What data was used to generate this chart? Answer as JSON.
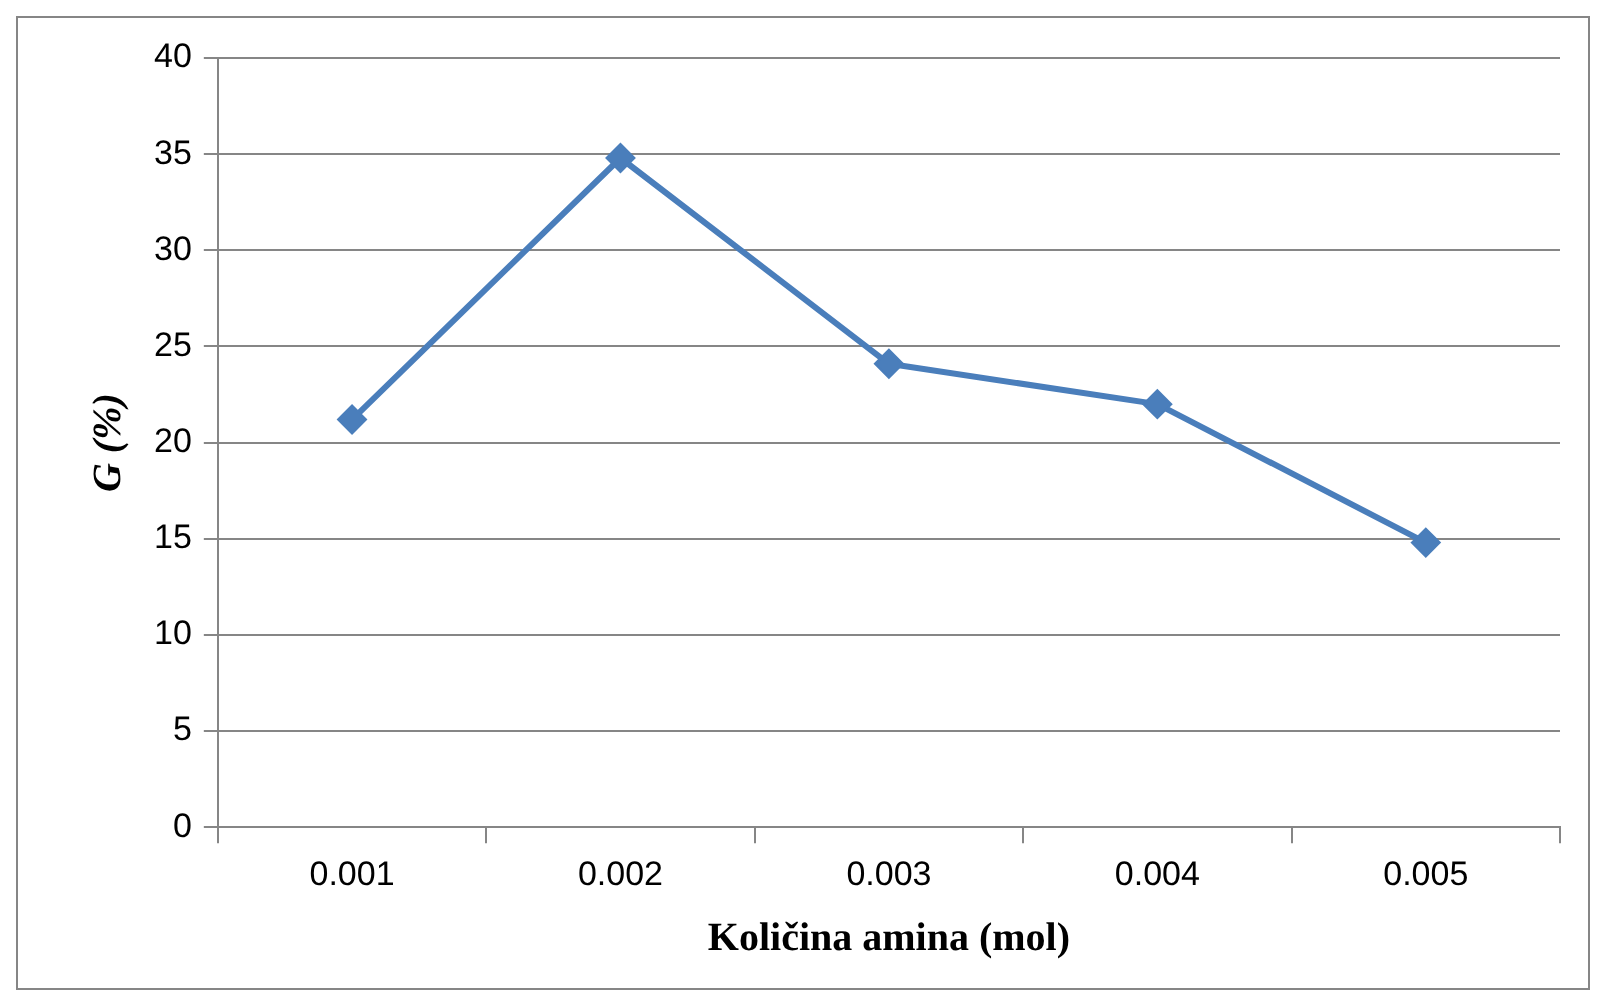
{
  "chart_data": {
    "type": "line",
    "xlabel": "Količina amina (mol)",
    "ylabel": "G (%)",
    "categories": [
      "0.001",
      "0.002",
      "0.003",
      "0.004",
      "0.005"
    ],
    "series": [
      {
        "color": "#4a7ebb",
        "values": [
          21.2,
          34.8,
          24.1,
          22.0,
          14.8
        ]
      }
    ],
    "ylim": [
      0,
      40
    ],
    "yticks": [
      0,
      5,
      10,
      15,
      20,
      25,
      30,
      35,
      40
    ],
    "grid": "y",
    "legend": false,
    "marker": "diamond",
    "line_style": "solid"
  }
}
